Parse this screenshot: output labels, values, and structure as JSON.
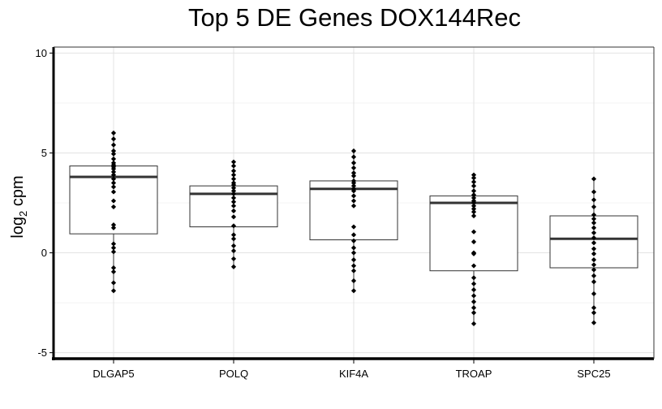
{
  "chart_data": {
    "type": "box",
    "title": "Top 5 DE Genes DOX144Rec",
    "xlabel": "",
    "ylabel_main": "log",
    "ylabel_sub": "2",
    "ylabel_rest": " cpm",
    "ylim": [
      -5.3,
      10.3
    ],
    "yticks": [
      -5,
      0,
      5,
      10
    ],
    "ytick_labels": [
      "-5",
      "0",
      "5",
      "10"
    ],
    "grid": true,
    "categories": [
      "DLGAP5",
      "POLQ",
      "KIF4A",
      "TROAP",
      "SPC25"
    ],
    "boxes": [
      {
        "name": "DLGAP5",
        "q1": 0.95,
        "median": 3.8,
        "q3": 4.35,
        "whisker_low": -1.9,
        "whisker_high": 6.0,
        "points": [
          6.0,
          5.7,
          5.4,
          5.1,
          4.95,
          4.7,
          4.5,
          4.4,
          4.3,
          4.2,
          4.05,
          3.9,
          3.7,
          3.5,
          3.3,
          3.05,
          2.6,
          2.3,
          1.4,
          1.25,
          0.45,
          0.25,
          0.05,
          -0.75,
          -0.95,
          -1.5,
          -1.9
        ]
      },
      {
        "name": "POLQ",
        "q1": 1.3,
        "median": 2.95,
        "q3": 3.35,
        "whisker_low": -0.7,
        "whisker_high": 4.55,
        "points": [
          4.55,
          4.35,
          4.1,
          3.9,
          3.7,
          3.5,
          3.4,
          3.25,
          3.1,
          2.95,
          2.75,
          2.55,
          2.35,
          2.1,
          1.8,
          1.35,
          0.9,
          0.7,
          0.35,
          0.1,
          -0.3,
          -0.7
        ]
      },
      {
        "name": "KIF4A",
        "q1": 0.65,
        "median": 3.2,
        "q3": 3.6,
        "whisker_low": -1.9,
        "whisker_high": 5.1,
        "points": [
          5.1,
          4.8,
          4.5,
          4.25,
          4.0,
          3.85,
          3.6,
          3.5,
          3.35,
          3.2,
          3.1,
          2.85,
          2.6,
          2.35,
          1.3,
          0.9,
          0.6,
          0.25,
          0.0,
          -0.35,
          -0.65,
          -0.9,
          -1.4,
          -1.9
        ]
      },
      {
        "name": "TROAP",
        "q1": -0.9,
        "median": 2.5,
        "q3": 2.85,
        "whisker_low": -3.55,
        "whisker_high": 3.9,
        "points": [
          3.9,
          3.75,
          3.55,
          3.35,
          3.1,
          2.9,
          2.75,
          2.6,
          2.5,
          2.35,
          2.2,
          2.05,
          1.85,
          1.05,
          0.55,
          0.0,
          -0.05,
          -0.65,
          -1.25,
          -1.55,
          -1.85,
          -2.15,
          -2.45,
          -2.75,
          -3.0,
          -3.55
        ]
      },
      {
        "name": "SPC25",
        "q1": -0.75,
        "median": 0.7,
        "q3": 1.85,
        "whisker_low": -3.5,
        "whisker_high": 3.7,
        "points": [
          3.7,
          3.05,
          2.65,
          2.3,
          1.9,
          1.7,
          1.5,
          1.25,
          1.0,
          0.75,
          0.5,
          0.2,
          -0.05,
          -0.35,
          -0.6,
          -0.85,
          -1.15,
          -1.45,
          -2.05,
          -2.75,
          -3.0,
          -3.5
        ]
      }
    ]
  }
}
